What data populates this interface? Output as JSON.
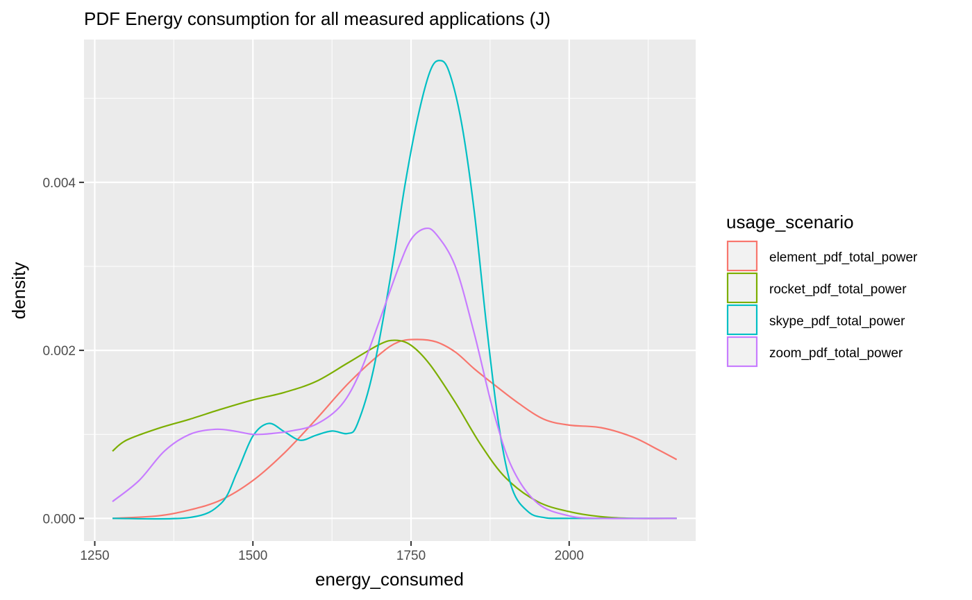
{
  "chart_data": {
    "type": "line",
    "title": "PDF Energy consumption for all measured applications (J)",
    "xlabel": "energy_consumed",
    "ylabel": "density",
    "xlim": [
      1233,
      2200
    ],
    "ylim": [
      -0.00027,
      0.0057
    ],
    "x_ticks": [
      1250,
      1500,
      1750,
      2000
    ],
    "x_tick_labels": [
      "1250",
      "1500",
      "1750",
      "2000"
    ],
    "y_ticks": [
      0,
      0.002,
      0.004
    ],
    "y_tick_labels": [
      "0.000",
      "0.002",
      "0.004"
    ],
    "grid": true,
    "legend": {
      "title": "usage_scenario",
      "placement": "right"
    },
    "series": [
      {
        "name": "element_pdf_total_power",
        "color": "#F8766D",
        "x": [
          1278,
          1350,
          1400,
          1450,
          1500,
          1550,
          1600,
          1650,
          1700,
          1730,
          1760,
          1790,
          1820,
          1850,
          1880,
          1920,
          1960,
          2000,
          2050,
          2100,
          2140,
          2170
        ],
        "y": [
          0.0,
          3e-05,
          0.0001,
          0.00022,
          0.00045,
          0.00078,
          0.00118,
          0.0016,
          0.00195,
          0.0021,
          0.00213,
          0.0021,
          0.00198,
          0.00178,
          0.0016,
          0.00137,
          0.00118,
          0.00111,
          0.00108,
          0.00097,
          0.00082,
          0.0007
        ]
      },
      {
        "name": "rocket_pdf_total_power",
        "color": "#7CAE00",
        "x": [
          1278,
          1300,
          1350,
          1400,
          1450,
          1500,
          1550,
          1600,
          1650,
          1700,
          1725,
          1750,
          1780,
          1820,
          1860,
          1900,
          1950,
          2000,
          2050,
          2100,
          2170
        ],
        "y": [
          0.0008,
          0.00093,
          0.00107,
          0.00118,
          0.0013,
          0.00141,
          0.0015,
          0.00163,
          0.00185,
          0.00207,
          0.00212,
          0.00206,
          0.00183,
          0.00138,
          0.00088,
          0.00048,
          0.0002,
          8e-05,
          2e-05,
          0.0,
          0.0
        ]
      },
      {
        "name": "skype_pdf_total_power",
        "color": "#00BFC4",
        "x": [
          1278,
          1400,
          1450,
          1475,
          1500,
          1525,
          1550,
          1575,
          1600,
          1625,
          1650,
          1665,
          1690,
          1720,
          1740,
          1760,
          1780,
          1795,
          1810,
          1830,
          1850,
          1870,
          1890,
          1910,
          1935,
          1960,
          2000,
          2170
        ],
        "y": [
          0.0,
          1e-05,
          0.00018,
          0.00055,
          0.00098,
          0.00113,
          0.00103,
          0.00093,
          0.00099,
          0.00104,
          0.00101,
          0.00112,
          0.00175,
          0.00298,
          0.00395,
          0.00475,
          0.00532,
          0.00545,
          0.00532,
          0.0047,
          0.00365,
          0.00225,
          0.00105,
          0.00035,
          8e-05,
          1e-05,
          0.0,
          0.0
        ]
      },
      {
        "name": "zoom_pdf_total_power",
        "color": "#C77CFF",
        "x": [
          1278,
          1320,
          1360,
          1400,
          1440,
          1470,
          1500,
          1530,
          1560,
          1600,
          1640,
          1670,
          1700,
          1730,
          1750,
          1772,
          1790,
          1820,
          1850,
          1880,
          1910,
          1950,
          2000,
          2050,
          2170
        ],
        "y": [
          0.0002,
          0.00045,
          0.0008,
          0.001,
          0.00106,
          0.00104,
          0.001,
          0.00101,
          0.00104,
          0.00112,
          0.00135,
          0.00175,
          0.00235,
          0.00298,
          0.00332,
          0.00345,
          0.00338,
          0.003,
          0.0022,
          0.00128,
          0.0006,
          0.00018,
          3e-05,
          0.0,
          0.0
        ]
      }
    ]
  }
}
